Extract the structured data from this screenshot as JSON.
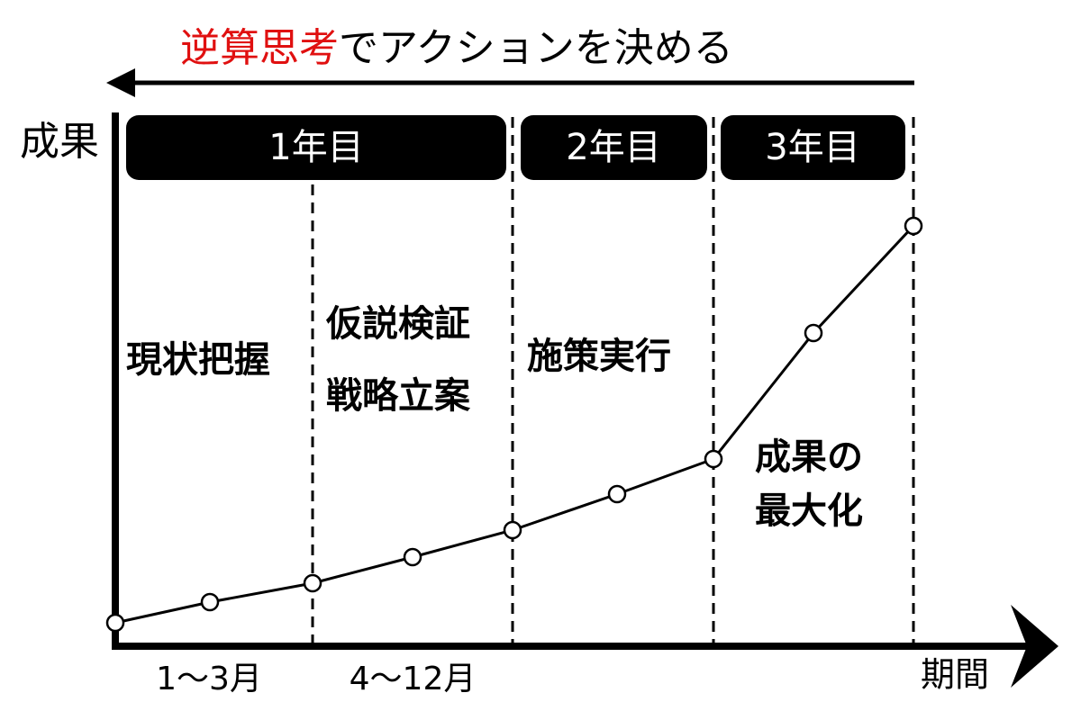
{
  "header": {
    "title_highlight": "逆算思考",
    "title_rest": "でアクションを決める"
  },
  "axes": {
    "y_label": "成果",
    "x_label": "期間"
  },
  "years": [
    "1年目",
    "2年目",
    "3年目"
  ],
  "phases": [
    {
      "lines": [
        "現状把握"
      ]
    },
    {
      "lines": [
        "仮説検証",
        "戦略立案"
      ]
    },
    {
      "lines": [
        "施策実行"
      ]
    },
    {
      "lines": [
        "成果の",
        "最大化"
      ]
    }
  ],
  "periods": [
    "1〜3月",
    "4〜12月"
  ]
}
